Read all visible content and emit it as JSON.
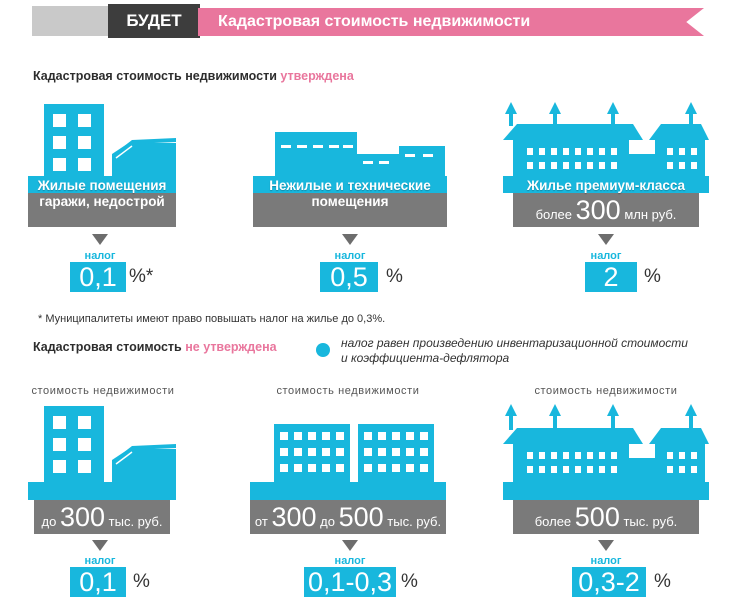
{
  "banner": {
    "tag": "БУДЕТ",
    "title": "Кадастровая стоимость недвижимости"
  },
  "section1": {
    "heading_prefix": "Кадастровая стоимость недвижимости",
    "heading_accent": "утверждена",
    "col1": {
      "line1": "Жилые помещения",
      "line2": "гаражи, недострой",
      "tax_label": "налог",
      "tax_value": "0,1",
      "tax_unit": "%*"
    },
    "col2": {
      "line1": "Нежилые и технические",
      "line2": "помещения",
      "tax_label": "налог",
      "tax_value": "0,5",
      "tax_unit": "%"
    },
    "col3": {
      "line1": "Жилье премиум-класса",
      "amount_prefix": "более",
      "amount_value": "300",
      "amount_unit": "млн руб.",
      "tax_label": "налог",
      "tax_value": "2",
      "tax_unit": "%"
    },
    "footnote": "* Муниципалитеты имеют право повышать налог на жилье до 0,3%."
  },
  "section2": {
    "heading_prefix": "Кадастровая стоимость",
    "heading_accent": "не утверждена",
    "note_line1": "налог равен произведению инвентаризационной стоимости",
    "note_line2": "и коэффициента-дефлятора",
    "col1": {
      "label": "стоимость недвижимости",
      "amount_prefix": "до",
      "amount_value": "300",
      "amount_unit": "тыс. руб.",
      "tax_label": "налог",
      "tax_value": "0,1",
      "tax_unit": "%"
    },
    "col2": {
      "label": "стоимость недвижимости",
      "amount_prefix": "от",
      "amount_value": "300",
      "amount_mid": "до",
      "amount_value2": "500",
      "amount_unit": "тыс. руб.",
      "tax_label": "налог",
      "tax_value": "0,1-0,3",
      "tax_unit": "%"
    },
    "col3": {
      "label": "стоимость недвижимости",
      "amount_prefix": "более",
      "amount_value": "500",
      "amount_unit": "тыс. руб.",
      "tax_label": "налог",
      "tax_value": "0,3-2",
      "tax_unit": "%"
    }
  },
  "colors": {
    "accent_blue": "#18b7dd",
    "accent_pink": "#e9769d",
    "bar_gray": "#7a7a7a",
    "banner_dark": "#3d3d3d"
  }
}
